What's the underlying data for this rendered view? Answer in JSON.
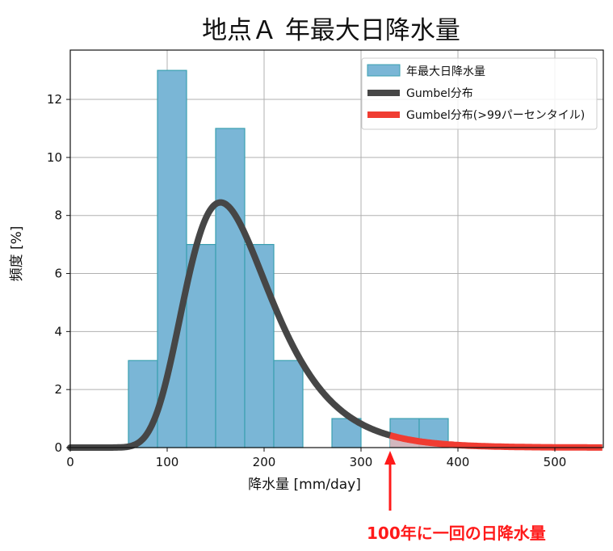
{
  "chart_data": {
    "type": "bar",
    "title": "地点Ａ 年最大日降水量",
    "xlabel": "降水量 [mm/day]",
    "ylabel": "頻度 [%]",
    "xlim": [
      0,
      550
    ],
    "ylim": [
      0,
      13.7
    ],
    "xticks": [
      0,
      100,
      200,
      300,
      400,
      500
    ],
    "yticks": [
      0,
      2,
      4,
      6,
      8,
      10,
      12
    ],
    "grid": true,
    "legend_position": "top-right",
    "histogram": {
      "name": "年最大日降水量",
      "bin_edges": [
        60,
        90,
        120,
        150,
        180,
        210,
        240,
        270,
        300,
        330,
        360,
        390
      ],
      "values": [
        3,
        13,
        7,
        11,
        7,
        3,
        0,
        1,
        0,
        1,
        1
      ],
      "color": "#7ab6d6",
      "edge_color": "#3aa0b0"
    },
    "gumbel": {
      "name": "Gumbel分布",
      "mode": 155,
      "scale": 44,
      "color": "#464646"
    },
    "gumbel_tail": {
      "name": "Gumbel分布(>99パーセンタイル)",
      "threshold": 330,
      "color": "#f03c32",
      "fill": "#f9b8b3"
    },
    "annotation": {
      "text": "100年に一回の日降水量",
      "x": 330,
      "color": "#ff1a1a"
    }
  }
}
